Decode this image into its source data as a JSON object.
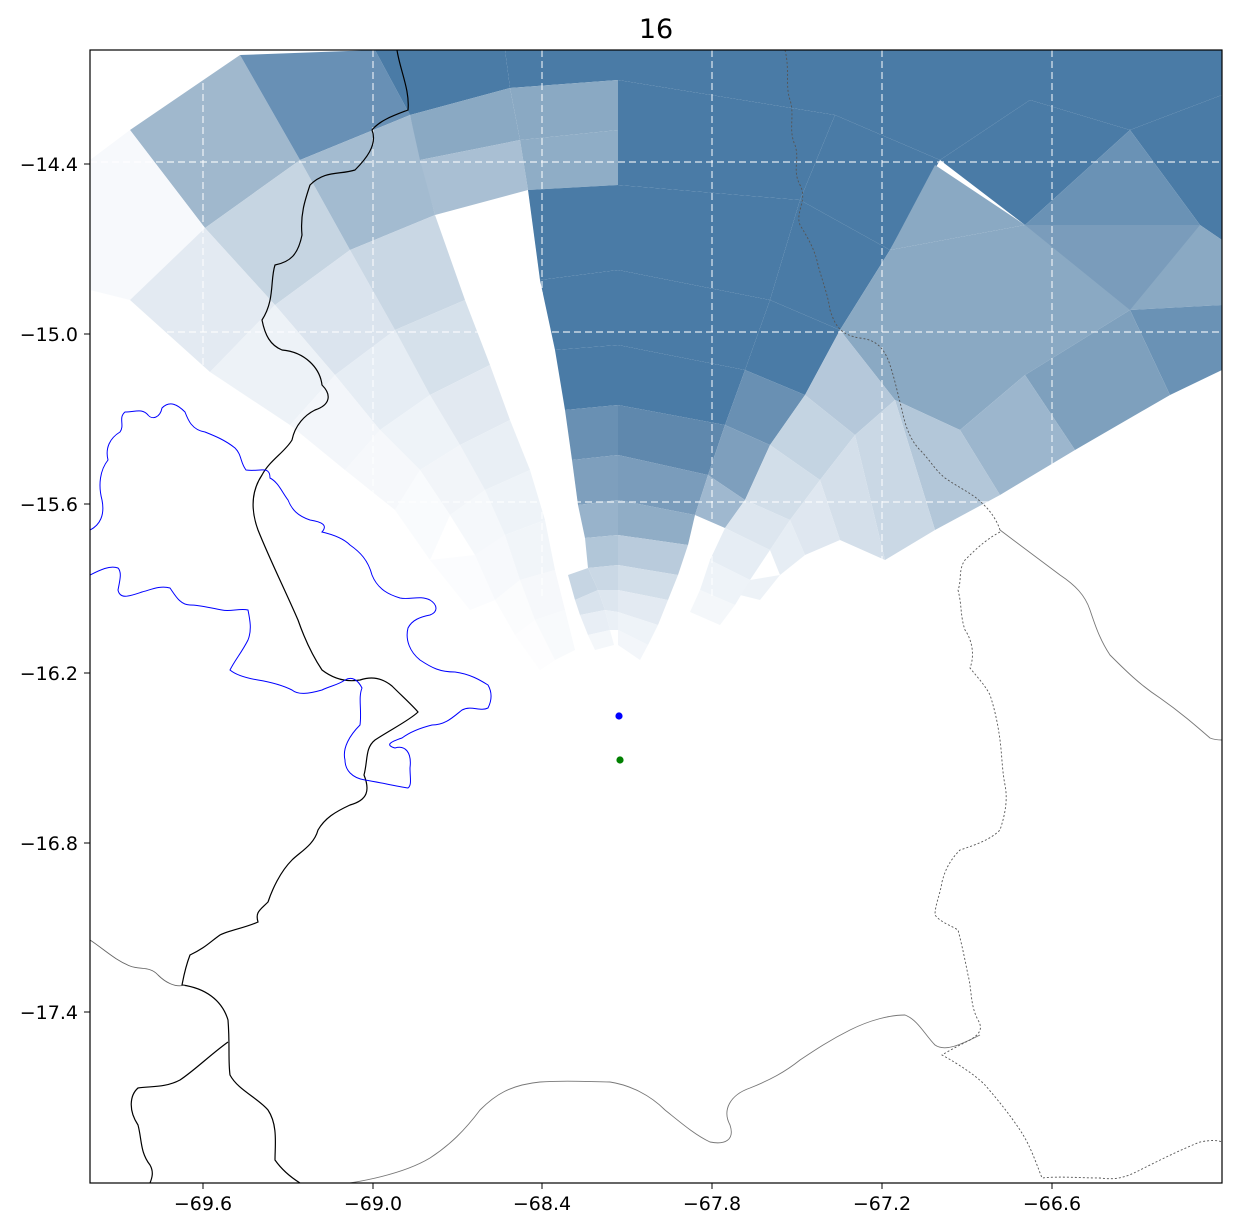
{
  "title": "16",
  "axes": {
    "x_ticks": [
      {
        "value": -69.6,
        "label": "−69.6"
      },
      {
        "value": -69.0,
        "label": "−69.0"
      },
      {
        "value": -68.4,
        "label": "−68.4"
      },
      {
        "value": -67.8,
        "label": "−67.8"
      },
      {
        "value": -67.2,
        "label": "−67.2"
      },
      {
        "value": -66.6,
        "label": "−66.6"
      }
    ],
    "y_ticks": [
      {
        "value": -14.4,
        "label": "−14.4"
      },
      {
        "value": -15.0,
        "label": "−15.0"
      },
      {
        "value": -15.6,
        "label": "−15.6"
      },
      {
        "value": -16.2,
        "label": "−16.2"
      },
      {
        "value": -16.8,
        "label": "−16.8"
      },
      {
        "value": -17.4,
        "label": "−17.4"
      }
    ],
    "x_range": [
      -70.0,
      -66.0
    ],
    "y_range": [
      -18.0,
      -14.0
    ],
    "grid": "dashed, over data region"
  },
  "map": {
    "shading": "radial sectors around a radar point, blue tones",
    "colors": {
      "fill_dark": "#4a7ba6",
      "coastline_lake": "#0000ff",
      "border": "#000000",
      "admin_border": "#555555"
    },
    "markers": [
      {
        "name": "radar-point",
        "lon": -68.13,
        "lat": -16.3,
        "color": "#0000ff"
      },
      {
        "name": "station-point",
        "lon": -68.12,
        "lat": -16.46,
        "color": "#008000"
      }
    ]
  }
}
